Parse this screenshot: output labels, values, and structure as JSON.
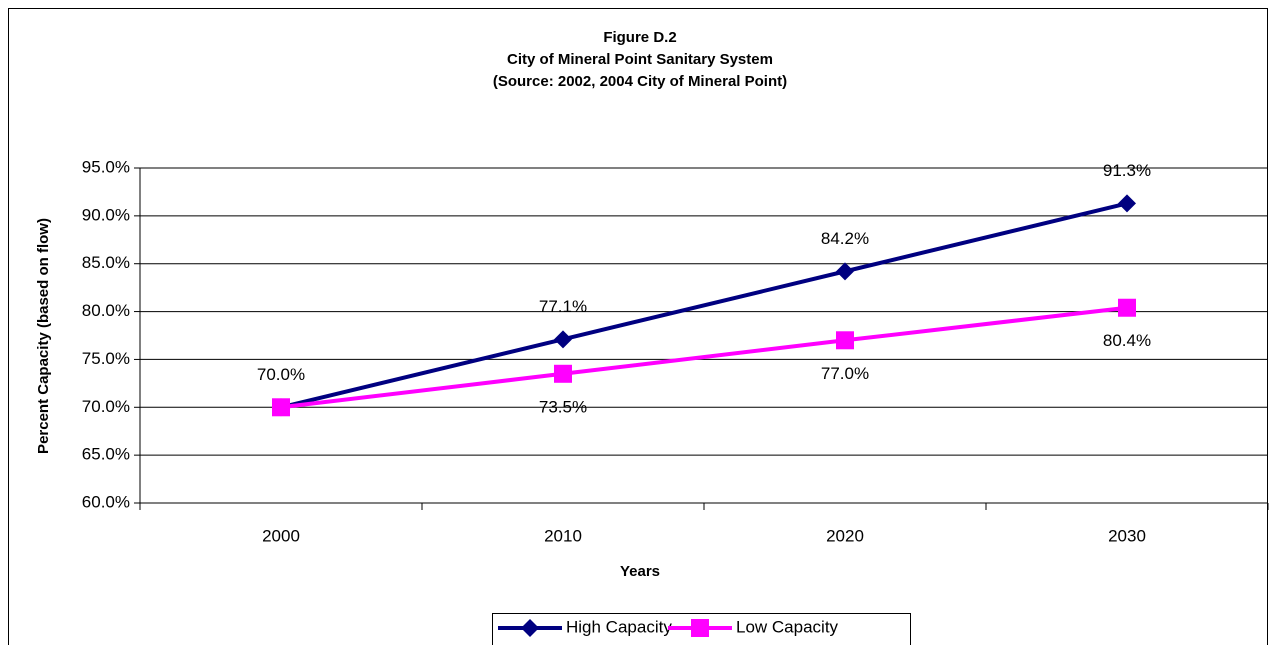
{
  "chart_data": {
    "type": "line",
    "title": "Figure D.2",
    "subtitle": "City of Mineral Point Sanitary System",
    "source": "(Source:  2002, 2004 City of Mineral Point)",
    "x_label": "Years",
    "y_label": "Percent Capacity (based on flow)",
    "categories": [
      "2000",
      "2010",
      "2020",
      "2030"
    ],
    "series": [
      {
        "name": "High Capacity",
        "color": "#000080",
        "marker": "diamond",
        "values": [
          70.0,
          77.1,
          84.2,
          91.3
        ],
        "value_labels": [
          "70.0%",
          "77.1%",
          "84.2%",
          "91.3%"
        ],
        "label_position": "above"
      },
      {
        "name": "Low Capacity",
        "color": "#ff00ff",
        "marker": "square",
        "values": [
          70.0,
          73.5,
          77.0,
          80.4
        ],
        "value_labels": [
          null,
          "73.5%",
          "77.0%",
          "80.4%"
        ],
        "label_position": "below"
      }
    ],
    "ylim": [
      60,
      95
    ],
    "yticks": [
      {
        "value": 60,
        "label": "60.0%"
      },
      {
        "value": 65,
        "label": "65.0%"
      },
      {
        "value": 70,
        "label": "70.0%"
      },
      {
        "value": 75,
        "label": "75.0%"
      },
      {
        "value": 80,
        "label": "80.0%"
      },
      {
        "value": 85,
        "label": "85.0%"
      },
      {
        "value": 90,
        "label": "90.0%"
      },
      {
        "value": 95,
        "label": "95.0%"
      }
    ],
    "grid": true,
    "legend": "bottom"
  }
}
